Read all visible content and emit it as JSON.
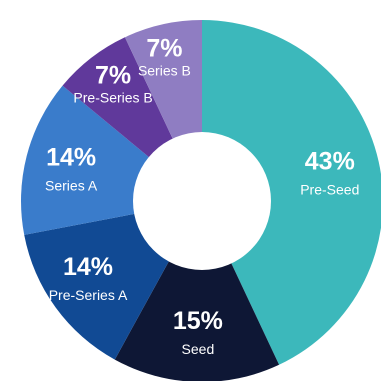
{
  "chart_data": {
    "type": "pie",
    "donut": true,
    "categories": [
      "Pre-Seed",
      "Seed",
      "Pre-Series A",
      "Series A",
      "Pre-Series B",
      "Series B"
    ],
    "values": [
      43,
      15,
      14,
      14,
      7,
      7
    ],
    "labels": [
      "43%",
      "15%",
      "14%",
      "14%",
      "7%",
      "7%"
    ],
    "colors": [
      "#3cb8bb",
      "#0e1735",
      "#114a94",
      "#3a7ccb",
      "#60399b",
      "#8f7dc2"
    ],
    "title": "",
    "legend": "none"
  }
}
